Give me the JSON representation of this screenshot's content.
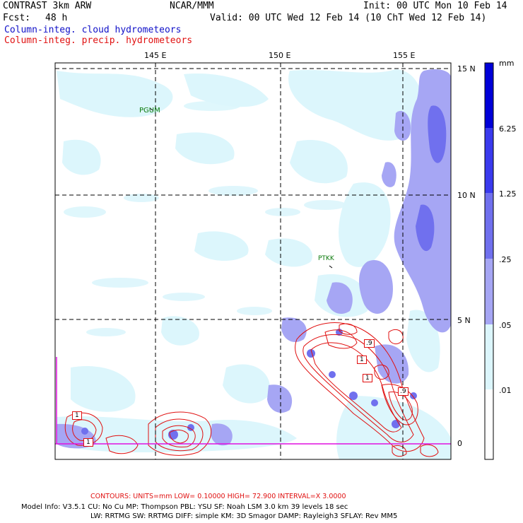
{
  "header": {
    "model": "CONTRAST  3km ARW",
    "org": "NCAR/MMM",
    "init": "Init: 00 UTC Mon 10 Feb 14",
    "fcst_label": "Fcst:",
    "fcst_value": "48 h",
    "valid": "Valid: 00 UTC Wed 12 Feb 14 (10 ChT Wed 12 Feb 14)",
    "field1": "Column-integ. cloud hydrometeors",
    "field2": "Column-integ. precip. hydrometeors"
  },
  "axes": {
    "lon_labels": [
      "145 E",
      "150 E",
      "155 E"
    ],
    "lat_labels": [
      "15 N",
      "10 N",
      "5 N",
      "0"
    ]
  },
  "stations": [
    "PGUM",
    "PTKK"
  ],
  "contour_labels": [
    "1",
    "1",
    ".9",
    "1",
    "1",
    ".9"
  ],
  "legend": {
    "unit": "mm",
    "levels": [
      "6.25",
      "1.25",
      ".25",
      ".05",
      ".01"
    ],
    "colors": [
      "#0000d8",
      "#3a3aee",
      "#7070ee",
      "#a6a6f4",
      "#dcf6fc",
      "#ffffff"
    ]
  },
  "footer": {
    "contours": "CONTOURS:  UNITS=mm  LOW= 0.10000      HIGH=  72.900      INTERVAL=X  3.0000",
    "model_info_1": "Model Info: V3.5.1     CU: No Cu      MP: Thompson      PBL: YSU       SF: Noah LSM     3.0 km   39 levels    18 sec",
    "model_info_2": "LW: RRTMG     SW: RRTMG   DIFF: simple KM: 3D Smagor DAMP: Rayleigh3   SFLAY: Rev MM5"
  },
  "colors": {
    "cloud_light": "#dcf6fc",
    "cloud_mid": "#a6a6f4",
    "cloud_dark": "#7070ee",
    "precip": "#e01010",
    "border": "#e010e0"
  }
}
